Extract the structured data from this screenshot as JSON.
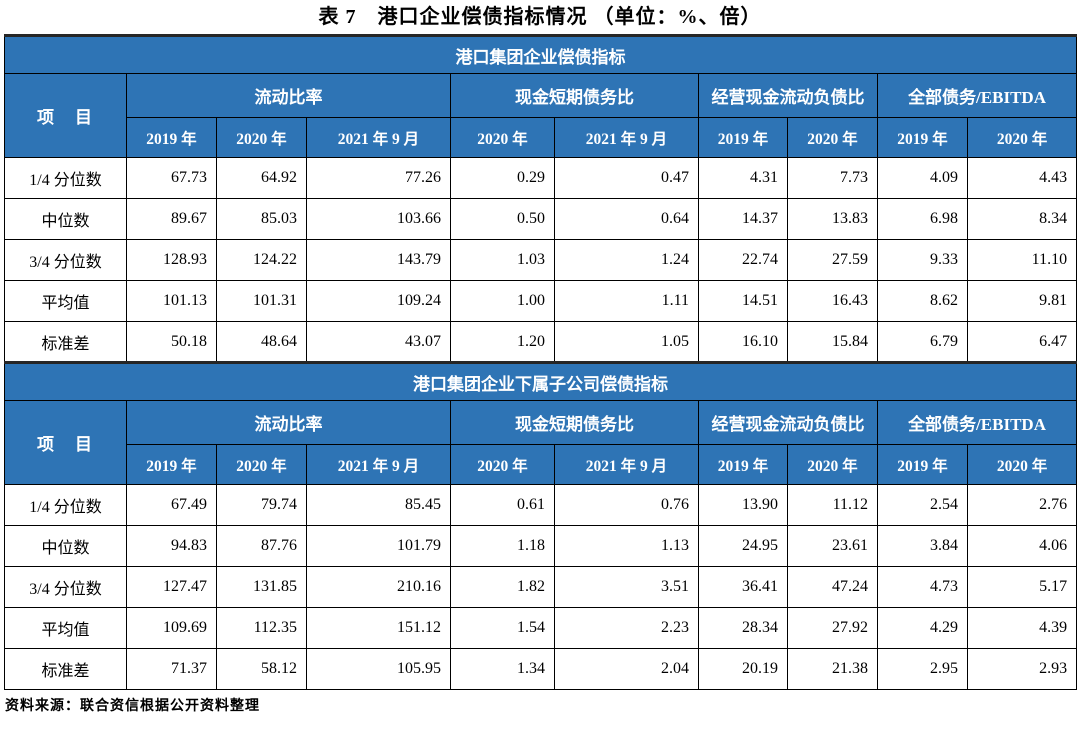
{
  "title": "表 7　港口企业偿债指标情况 （单位：%、倍）",
  "footer": "资料来源：联合资信根据公开资料整理",
  "colors": {
    "header_blue": "#2E74B5",
    "border_black": "#000000"
  },
  "header": {
    "item_col": "项　目",
    "groups": [
      {
        "label": "流动比率",
        "years": [
          "2019 年",
          "2020 年",
          "2021 年 9 月"
        ]
      },
      {
        "label": "现金短期债务比",
        "years": [
          "2020 年",
          "2021 年 9 月"
        ]
      },
      {
        "label": "经营现金流动负债比",
        "years": [
          "2019 年",
          "2020 年"
        ]
      },
      {
        "label": "全部债务/EBITDA",
        "years": [
          "2019 年",
          "2020 年"
        ]
      }
    ]
  },
  "sections": [
    {
      "title": "港口集团企业偿债指标",
      "rows": [
        {
          "label": "1/4 分位数",
          "values": [
            "67.73",
            "64.92",
            "77.26",
            "0.29",
            "0.47",
            "4.31",
            "7.73",
            "4.09",
            "4.43"
          ]
        },
        {
          "label": "中位数",
          "values": [
            "89.67",
            "85.03",
            "103.66",
            "0.50",
            "0.64",
            "14.37",
            "13.83",
            "6.98",
            "8.34"
          ]
        },
        {
          "label": "3/4 分位数",
          "values": [
            "128.93",
            "124.22",
            "143.79",
            "1.03",
            "1.24",
            "22.74",
            "27.59",
            "9.33",
            "11.10"
          ]
        },
        {
          "label": "平均值",
          "values": [
            "101.13",
            "101.31",
            "109.24",
            "1.00",
            "1.11",
            "14.51",
            "16.43",
            "8.62",
            "9.81"
          ]
        },
        {
          "label": "标准差",
          "values": [
            "50.18",
            "48.64",
            "43.07",
            "1.20",
            "1.05",
            "16.10",
            "15.84",
            "6.79",
            "6.47"
          ]
        }
      ]
    },
    {
      "title": "港口集团企业下属子公司偿债指标",
      "rows": [
        {
          "label": "1/4 分位数",
          "values": [
            "67.49",
            "79.74",
            "85.45",
            "0.61",
            "0.76",
            "13.90",
            "11.12",
            "2.54",
            "2.76"
          ]
        },
        {
          "label": "中位数",
          "values": [
            "94.83",
            "87.76",
            "101.79",
            "1.18",
            "1.13",
            "24.95",
            "23.61",
            "3.84",
            "4.06"
          ]
        },
        {
          "label": "3/4 分位数",
          "values": [
            "127.47",
            "131.85",
            "210.16",
            "1.82",
            "3.51",
            "36.41",
            "47.24",
            "4.73",
            "5.17"
          ]
        },
        {
          "label": "平均值",
          "values": [
            "109.69",
            "112.35",
            "151.12",
            "1.54",
            "2.23",
            "28.34",
            "27.92",
            "4.29",
            "4.39"
          ]
        },
        {
          "label": "标准差",
          "values": [
            "71.37",
            "58.12",
            "105.95",
            "1.34",
            "2.04",
            "20.19",
            "21.38",
            "2.95",
            "2.93"
          ]
        }
      ]
    }
  ]
}
